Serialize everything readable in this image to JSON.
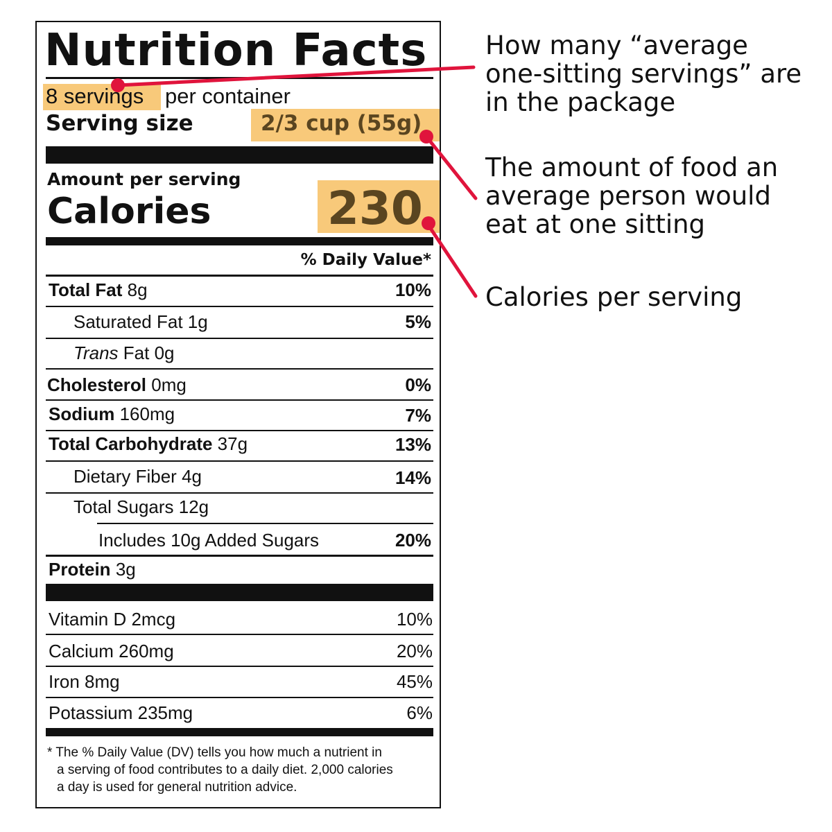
{
  "label": {
    "title": "Nutrition Facts",
    "servings_count": "8 servings",
    "servings_suffix": "per container",
    "serving_size_label": "Serving size",
    "serving_size_value": "2/3 cup (55g)",
    "amount_per_serving": "Amount per serving",
    "calories_label": "Calories",
    "calories_value": "230",
    "daily_value_header": "% Daily Value*",
    "nutrients": [
      {
        "name": "Total Fat",
        "amount": "8g",
        "dv": "10%"
      },
      {
        "name": "Saturated Fat",
        "amount": "1g",
        "dv": "5%"
      },
      {
        "name": "Trans",
        "name_rest": "Fat",
        "amount": "0g",
        "dv": ""
      },
      {
        "name": "Cholesterol",
        "amount": "0mg",
        "dv": "0%"
      },
      {
        "name": "Sodium",
        "amount": "160mg",
        "dv": "7%"
      },
      {
        "name": "Total Carbohydrate",
        "amount": "37g",
        "dv": "13%"
      },
      {
        "name": "Dietary Fiber",
        "amount": "4g",
        "dv": "14%"
      },
      {
        "name": "Total Sugars",
        "amount": "12g",
        "dv": ""
      },
      {
        "name": "Includes 10g Added Sugars",
        "amount": "",
        "dv": "20%"
      },
      {
        "name": "Protein",
        "amount": "3g",
        "dv": ""
      }
    ],
    "vitamins": [
      {
        "name": "Vitamin D",
        "amount": "2mcg",
        "dv": "10%"
      },
      {
        "name": "Calcium",
        "amount": "260mg",
        "dv": "20%"
      },
      {
        "name": "Iron",
        "amount": "8mg",
        "dv": "45%"
      },
      {
        "name": "Potassium",
        "amount": "235mg",
        "dv": "6%"
      }
    ],
    "footnote_lines": [
      "* The % Daily Value (DV) tells you how much a nutrient in",
      "a serving of food contributes to a daily diet. 2,000 calories",
      "a day is used for general nutrition advice."
    ]
  },
  "annotations": {
    "servings": "How many “average one-sitting servings” are in the package",
    "serving_size": "The amount of food an average person would eat at one sitting",
    "calories": "Calories per serving"
  },
  "colors": {
    "highlight": "#f8c97a",
    "pointer": "#e0143c",
    "ink": "#111111"
  }
}
